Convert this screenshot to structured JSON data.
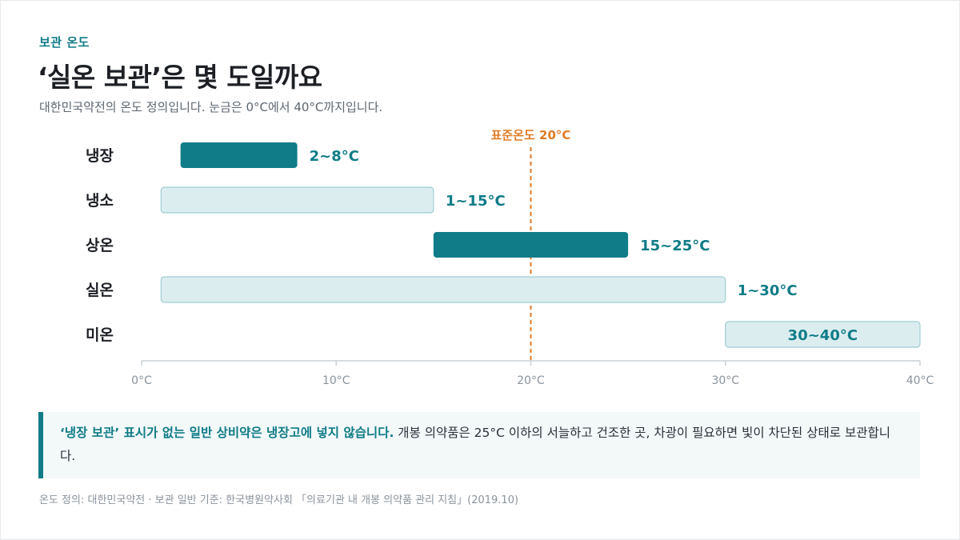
{
  "header": {
    "eyebrow": "보관 온도",
    "title": "‘실온 보관’은 몇 도일까요",
    "subtitle": "대한민국약전의 온도 정의입니다. 눈금은 0°C에서 40°C까지입니다."
  },
  "chart_data": {
    "type": "bar",
    "orientation": "horizontal-range",
    "categories": [
      "냉장",
      "냉소",
      "상온",
      "실온",
      "미온"
    ],
    "ranges": [
      {
        "label": "냉장",
        "min": 2,
        "max": 8,
        "value_label": "2~8°C",
        "style": "dark"
      },
      {
        "label": "냉소",
        "min": 1,
        "max": 15,
        "value_label": "1~15°C",
        "style": "light"
      },
      {
        "label": "상온",
        "min": 15,
        "max": 25,
        "value_label": "15~25°C",
        "style": "dark"
      },
      {
        "label": "실온",
        "min": 1,
        "max": 30,
        "value_label": "1~30°C",
        "style": "light"
      },
      {
        "label": "미온",
        "min": 30,
        "max": 40,
        "value_label": "30~40°C",
        "style": "light",
        "label_inside": true
      }
    ],
    "xlim": [
      0,
      40
    ],
    "xticks": [
      0,
      10,
      20,
      30,
      40
    ],
    "xtick_labels": [
      "0°C",
      "10°C",
      "20°C",
      "30°C",
      "40°C"
    ],
    "reference_line": {
      "value": 20,
      "label": "표준온도 20°C"
    },
    "grid": false,
    "colors": {
      "dark_fill": "#0f7c87",
      "light_fill": "#dcedf0",
      "light_stroke": "#9fcdd3",
      "value_label": "#0f7c87",
      "reference": "#e07b25",
      "axis": "#c9d1d6",
      "tick_label": "#8a939c",
      "category_label": "#1c1f24"
    }
  },
  "callout": {
    "strong": "‘냉장 보관’ 표시가 없는 일반 상비약은 냉장고에 넣지 않습니다.",
    "text": " 개봉 의약품은 25°C 이하의 서늘하고 건조한 곳, 차광이 필요하면 빛이 차단된 상태로 보관합니다."
  },
  "source": "온도 정의: 대한민국약전 · 보관 일반 기준: 한국병원약사회 「의료기관 내 개봉 의약품 관리 지침」(2019.10)"
}
